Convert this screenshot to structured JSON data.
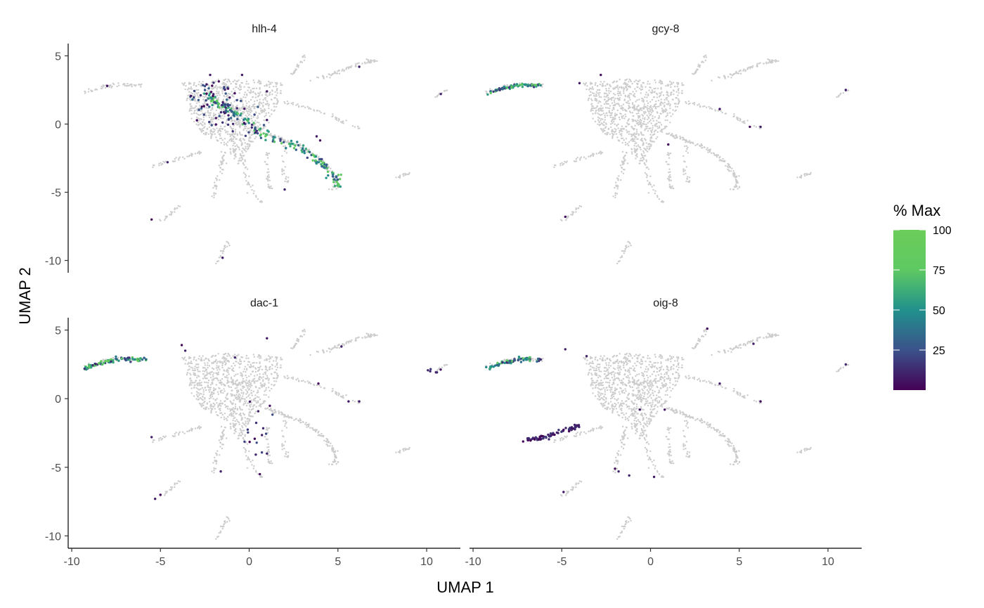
{
  "chart_data": {
    "type": "scatter",
    "layout": "facet-2x2",
    "xlabel": "UMAP 1",
    "ylabel": "UMAP 2",
    "xlim": [
      -10.2,
      11.9
    ],
    "ylim": [
      -10.9,
      5.9
    ],
    "x_ticks": [
      -10,
      -5,
      0,
      5,
      10
    ],
    "x_tick_labels": [
      "-10",
      "-5",
      "0",
      "5",
      "10"
    ],
    "y_ticks": [
      5,
      0,
      -5,
      -10
    ],
    "y_tick_labels": [
      "5",
      "0",
      "-5",
      "-10"
    ],
    "background_color": "#cccccc",
    "grid": false,
    "legend": {
      "title": "% Max",
      "position": "right",
      "min": 0,
      "max": 100,
      "ticks": [
        100,
        75,
        50,
        25
      ],
      "tick_labels": [
        "100",
        "75",
        "50",
        "25"
      ],
      "colors": [
        "#440154",
        "#3b528b",
        "#21918c",
        "#5ec962",
        "#6ccd5a"
      ]
    },
    "panels": [
      {
        "title": "hlh-4",
        "highlight_paths": [
          {
            "pts": [
              [
                -2.6,
                2.4
              ],
              [
                -2.0,
                1.8
              ],
              [
                -1.4,
                1.2
              ],
              [
                -0.8,
                0.8
              ],
              [
                -0.2,
                0.2
              ],
              [
                0.6,
                -0.6
              ],
              [
                1.6,
                -1.2
              ],
              [
                2.6,
                -1.6
              ],
              [
                3.6,
                -2.4
              ],
              [
                4.4,
                -3.2
              ],
              [
                4.9,
                -4.0
              ],
              [
                5.0,
                -4.6
              ]
            ],
            "n": 170,
            "spread": 0.14,
            "pct": [
              20,
              90
            ]
          }
        ],
        "scatter_regions": [
          {
            "cx": -2.0,
            "cy": 1.5,
            "rx": 1.4,
            "ry": 1.7,
            "n": 55,
            "pct": [
              0,
              35
            ]
          },
          {
            "cx": -0.5,
            "cy": 0.5,
            "rx": 1.5,
            "ry": 1.5,
            "n": 25,
            "pct": [
              0,
              30
            ]
          }
        ],
        "isolated": [
          [
            -8.0,
            2.8
          ],
          [
            4.0,
            -1.2
          ],
          [
            -5.5,
            -7.0
          ],
          [
            -1.5,
            -9.8
          ],
          [
            1.0,
            0.3
          ],
          [
            3.8,
            -0.9
          ],
          [
            -4.6,
            -2.8
          ],
          [
            2.0,
            -4.8
          ],
          [
            6.2,
            4.2
          ],
          [
            10.8,
            2.2
          ],
          [
            -0.4,
            3.6
          ],
          [
            -2.2,
            3.6
          ],
          [
            1.0,
            2.4
          ]
        ]
      },
      {
        "title": "gcy-8",
        "highlight_paths": [
          {
            "pts": [
              [
                -9.2,
                2.2
              ],
              [
                -8.6,
                2.5
              ],
              [
                -8.0,
                2.7
              ],
              [
                -7.4,
                2.85
              ],
              [
                -6.8,
                2.85
              ],
              [
                -6.2,
                2.8
              ]
            ],
            "n": 70,
            "spread": 0.07,
            "pct": [
              10,
              85
            ]
          }
        ],
        "scatter_regions": [],
        "isolated": [
          [
            -2.8,
            3.6
          ],
          [
            -4.0,
            3.0
          ],
          [
            3.9,
            1.1
          ],
          [
            5.6,
            -0.2
          ],
          [
            6.2,
            -0.2
          ],
          [
            11.0,
            2.5
          ],
          [
            1.0,
            -1.5
          ],
          [
            -4.8,
            -6.8
          ]
        ]
      },
      {
        "title": "dac-1",
        "highlight_paths": [
          {
            "pts": [
              [
                -9.3,
                2.2
              ],
              [
                -8.7,
                2.45
              ],
              [
                -8.1,
                2.7
              ],
              [
                -7.4,
                2.9
              ],
              [
                -6.6,
                2.9
              ],
              [
                -5.7,
                2.85
              ]
            ],
            "n": 90,
            "spread": 0.08,
            "pct": [
              10,
              95
            ]
          }
        ],
        "scatter_regions": [
          {
            "cx": 0.5,
            "cy": -2.0,
            "rx": 0.9,
            "ry": 2.2,
            "n": 16,
            "pct": [
              0,
              25
            ]
          },
          {
            "cx": 10.5,
            "cy": 2.1,
            "rx": 0.5,
            "ry": 0.25,
            "n": 6,
            "pct": [
              0,
              20
            ]
          }
        ],
        "isolated": [
          [
            -3.8,
            3.9
          ],
          [
            -3.6,
            3.5
          ],
          [
            1.0,
            4.4
          ],
          [
            -0.8,
            3.0
          ],
          [
            3.9,
            1.1
          ],
          [
            5.6,
            -0.2
          ],
          [
            6.2,
            -0.2
          ],
          [
            5.2,
            3.8
          ],
          [
            -5.5,
            -2.8
          ],
          [
            -1.6,
            -5.3
          ],
          [
            0.6,
            -5.5
          ],
          [
            1.0,
            -4.0
          ],
          [
            -5.0,
            -7.0
          ],
          [
            -5.3,
            -7.3
          ]
        ]
      },
      {
        "title": "oig-8",
        "highlight_paths": [
          {
            "pts": [
              [
                -9.2,
                2.2
              ],
              [
                -8.6,
                2.5
              ],
              [
                -8.0,
                2.7
              ],
              [
                -7.4,
                2.9
              ],
              [
                -6.8,
                2.9
              ],
              [
                -6.2,
                2.8
              ]
            ],
            "n": 70,
            "spread": 0.07,
            "pct": [
              10,
              85
            ]
          },
          {
            "pts": [
              [
                -7.0,
                -3.0
              ],
              [
                -6.2,
                -2.9
              ],
              [
                -5.4,
                -2.55
              ],
              [
                -4.6,
                -2.2
              ],
              [
                -4.0,
                -2.0
              ]
            ],
            "n": 70,
            "spread": 0.1,
            "pct": [
              0,
              18
            ]
          }
        ],
        "scatter_regions": [],
        "isolated": [
          [
            -4.8,
            3.6
          ],
          [
            -3.6,
            3.1
          ],
          [
            3.2,
            5.1
          ],
          [
            5.8,
            4.0
          ],
          [
            3.9,
            1.1
          ],
          [
            6.2,
            -0.2
          ],
          [
            11.0,
            2.5
          ],
          [
            -0.6,
            -0.8
          ],
          [
            0.8,
            -0.8
          ],
          [
            -2.0,
            -5.1
          ],
          [
            -1.8,
            -5.3
          ],
          [
            -1.2,
            -5.6
          ],
          [
            0.2,
            -5.7
          ],
          [
            -4.9,
            -6.8
          ]
        ]
      }
    ]
  }
}
